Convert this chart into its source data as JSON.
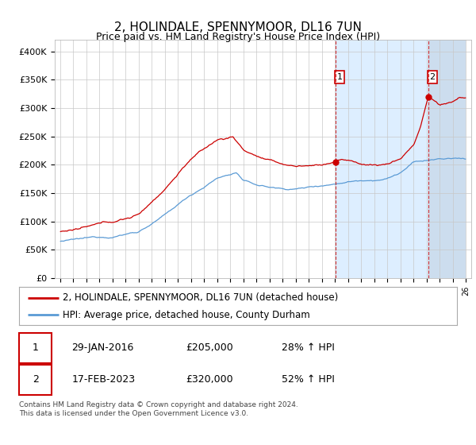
{
  "title": "2, HOLINDALE, SPENNYMOOR, DL16 7UN",
  "subtitle": "Price paid vs. HM Land Registry's House Price Index (HPI)",
  "ylim": [
    0,
    420000
  ],
  "yticks": [
    0,
    50000,
    100000,
    150000,
    200000,
    250000,
    300000,
    350000,
    400000
  ],
  "ytick_labels": [
    "£0",
    "£50K",
    "£100K",
    "£150K",
    "£200K",
    "£250K",
    "£300K",
    "£350K",
    "£400K"
  ],
  "hpi_color": "#5b9bd5",
  "price_color": "#cc0000",
  "grid_color": "#c8c8c8",
  "bg_color": "#ffffff",
  "shade_color": "#ddeeff",
  "hatch_color": "#ccddee",
  "marker1_year": 2016,
  "marker1_month": 1,
  "marker1_price": 205000,
  "marker2_year": 2023,
  "marker2_month": 2,
  "marker2_price": 320000,
  "legend_label1": "2, HOLINDALE, SPENNYMOOR, DL16 7UN (detached house)",
  "legend_label2": "HPI: Average price, detached house, County Durham",
  "table_row1": [
    "1",
    "29-JAN-2016",
    "£205,000",
    "28% ↑ HPI"
  ],
  "table_row2": [
    "2",
    "17-FEB-2023",
    "£320,000",
    "52% ↑ HPI"
  ],
  "footnote": "Contains HM Land Registry data © Crown copyright and database right 2024.\nThis data is licensed under the Open Government Licence v3.0.",
  "title_fontsize": 11,
  "subtitle_fontsize": 9,
  "tick_fontsize": 8,
  "legend_fontsize": 8.5
}
